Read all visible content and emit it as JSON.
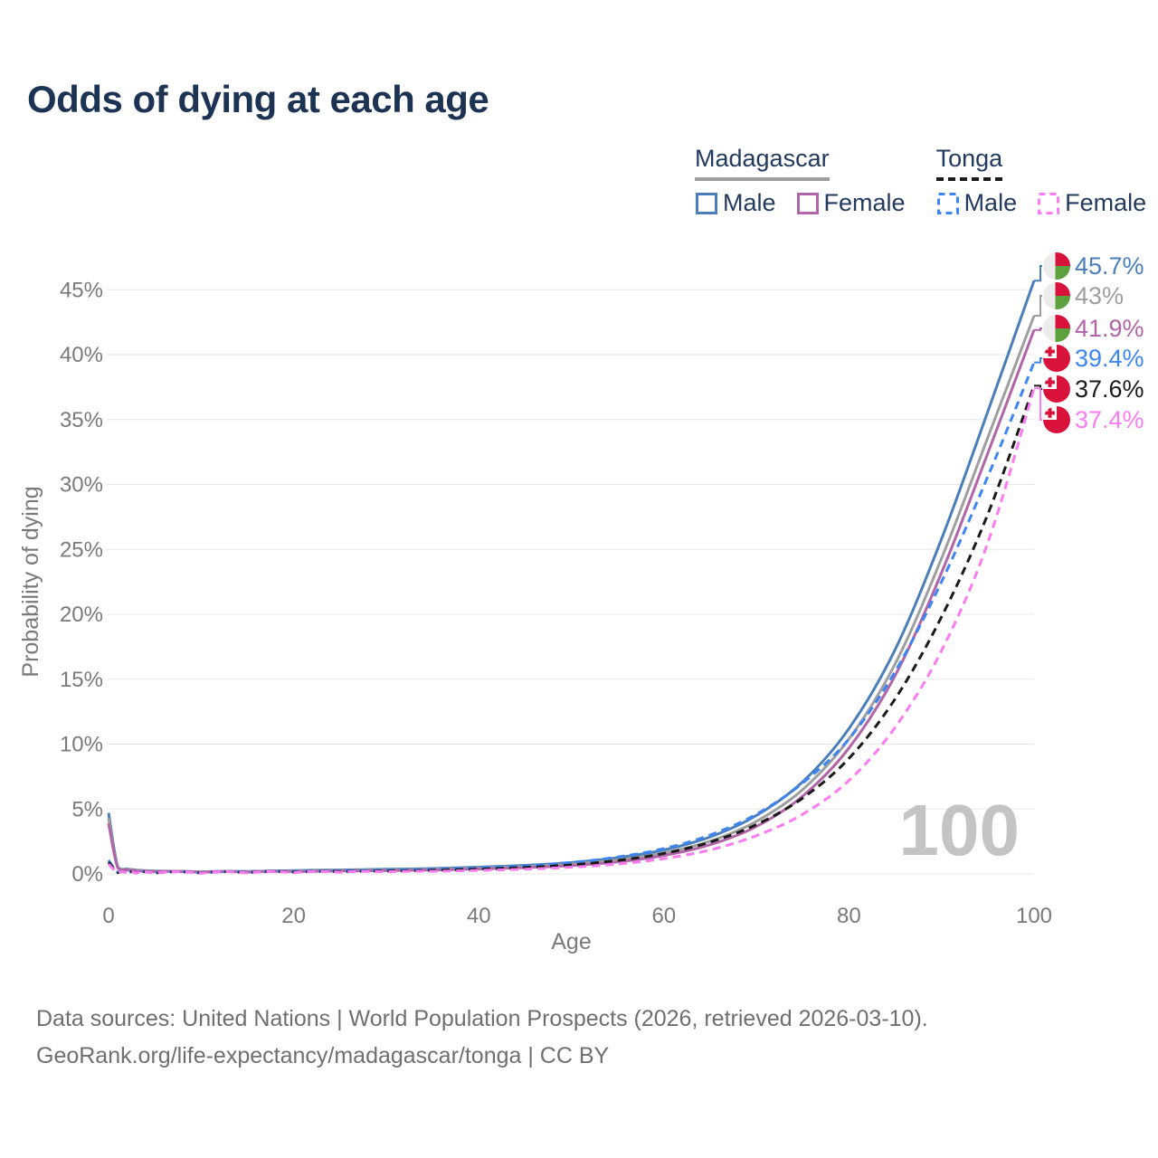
{
  "title": "Odds of dying at each age",
  "watermark": "100",
  "footer": {
    "line1": "Data sources: United Nations | World Population Prospects (2026, retrieved 2026-03-10).",
    "line2": "GeoRank.org/life-expectancy/madagascar/tonga | CC BY"
  },
  "legend": {
    "groups": [
      {
        "title": "Madagascar",
        "underline_style": "solid",
        "underline_color": "#9e9e9e",
        "items": [
          {
            "label": "Male",
            "color": "#4a7ebb",
            "dashed": false
          },
          {
            "label": "Female",
            "color": "#b264a8",
            "dashed": false
          }
        ]
      },
      {
        "title": "Tonga",
        "underline_style": "dashed",
        "underline_color": "#1a1a1a",
        "items": [
          {
            "label": "Male",
            "color": "#3d85f2",
            "dashed": true
          },
          {
            "label": "Female",
            "color": "#fb7bf2",
            "dashed": true
          }
        ]
      }
    ]
  },
  "chart_data": {
    "type": "line",
    "title": "Odds of dying at each age",
    "xlabel": "Age",
    "ylabel": "Probability of dying",
    "xlim": [
      0,
      100
    ],
    "ylim": [
      0,
      47
    ],
    "grid": true,
    "legend_position": "top-right",
    "x_ticks": [
      0,
      20,
      40,
      60,
      80,
      100
    ],
    "y_ticks": [
      {
        "value": 0,
        "label": "0%"
      },
      {
        "value": 5,
        "label": "5%"
      },
      {
        "value": 10,
        "label": "10%"
      },
      {
        "value": 15,
        "label": "15%"
      },
      {
        "value": 20,
        "label": "20%"
      },
      {
        "value": 25,
        "label": "25%"
      },
      {
        "value": 30,
        "label": "30%"
      },
      {
        "value": 35,
        "label": "35%"
      },
      {
        "value": 40,
        "label": "40%"
      },
      {
        "value": 45,
        "label": "45%"
      }
    ],
    "x": [
      0,
      1,
      2,
      3,
      5,
      10,
      15,
      20,
      25,
      30,
      35,
      40,
      45,
      50,
      55,
      60,
      65,
      70,
      75,
      80,
      85,
      90,
      95,
      100
    ],
    "unit": "percent",
    "series": [
      {
        "name": "Madagascar Male",
        "country": "Madagascar",
        "sex": "Male",
        "color": "#4a7ebb",
        "dashed": false,
        "flag": "madagascar",
        "end_label": "45.7%",
        "values": [
          4.7,
          0.55,
          0.38,
          0.3,
          0.22,
          0.15,
          0.19,
          0.26,
          0.31,
          0.36,
          0.42,
          0.52,
          0.66,
          0.88,
          1.25,
          1.85,
          2.85,
          4.5,
          7.1,
          11.2,
          17.3,
          25.8,
          35.6,
          45.7
        ]
      },
      {
        "name": "Madagascar Both sexes",
        "country": "Madagascar",
        "sex": "Both",
        "color": "#9e9e9e",
        "dashed": false,
        "flag": "madagascar",
        "end_label": "43%",
        "values": [
          4.3,
          0.5,
          0.35,
          0.27,
          0.2,
          0.14,
          0.17,
          0.22,
          0.26,
          0.31,
          0.36,
          0.45,
          0.57,
          0.76,
          1.08,
          1.62,
          2.52,
          4.05,
          6.5,
          10.4,
          16.2,
          24.3,
          33.6,
          43.0
        ]
      },
      {
        "name": "Madagascar Female",
        "country": "Madagascar",
        "sex": "Female",
        "color": "#b264a8",
        "dashed": false,
        "flag": "madagascar",
        "end_label": "41.9%",
        "values": [
          3.9,
          0.45,
          0.31,
          0.24,
          0.18,
          0.12,
          0.14,
          0.18,
          0.22,
          0.26,
          0.3,
          0.38,
          0.49,
          0.65,
          0.93,
          1.42,
          2.25,
          3.65,
          6.0,
          9.7,
          15.3,
          23.2,
          32.4,
          41.9
        ]
      },
      {
        "name": "Tonga Male",
        "country": "Tonga",
        "sex": "Male",
        "color": "#3d85f2",
        "dashed": true,
        "flag": "tonga",
        "end_label": "39.4%",
        "values": [
          1.05,
          0.12,
          0.08,
          0.07,
          0.06,
          0.07,
          0.12,
          0.18,
          0.23,
          0.28,
          0.35,
          0.46,
          0.62,
          0.88,
          1.3,
          1.95,
          3.0,
          4.6,
          7.0,
          10.4,
          15.6,
          22.5,
          30.6,
          39.4
        ]
      },
      {
        "name": "Tonga Both sexes",
        "country": "Tonga",
        "sex": "Both",
        "color": "#1a1a1a",
        "dashed": true,
        "flag": "tonga",
        "end_label": "37.6%",
        "values": [
          0.9,
          0.1,
          0.07,
          0.06,
          0.05,
          0.06,
          0.1,
          0.14,
          0.18,
          0.22,
          0.28,
          0.37,
          0.5,
          0.7,
          1.04,
          1.58,
          2.45,
          3.8,
          5.85,
          8.9,
          13.5,
          19.8,
          27.7,
          37.6
        ]
      },
      {
        "name": "Tonga Female",
        "country": "Tonga",
        "sex": "Female",
        "color": "#fb7bf2",
        "dashed": true,
        "flag": "tonga",
        "end_label": "37.4%",
        "values": [
          0.75,
          0.09,
          0.06,
          0.05,
          0.04,
          0.05,
          0.07,
          0.1,
          0.13,
          0.16,
          0.2,
          0.27,
          0.37,
          0.52,
          0.76,
          1.18,
          1.85,
          2.95,
          4.6,
          7.2,
          11.3,
          17.2,
          25.5,
          37.4
        ]
      }
    ],
    "flag_colors": {
      "red": "#d8123a",
      "green": "#5ca13e",
      "white": "#ececec"
    }
  }
}
